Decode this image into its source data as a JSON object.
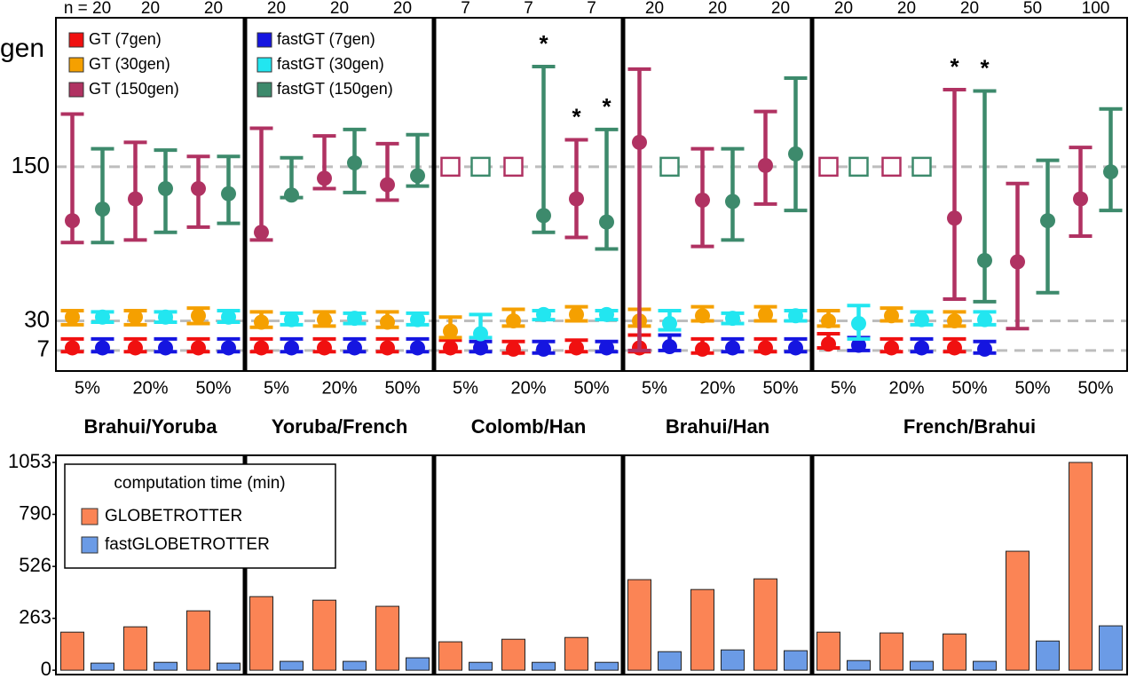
{
  "chart_data": [
    {
      "type": "errorbar",
      "ylabel": "gen",
      "ylim": [
        -9,
        266
      ],
      "yticks": [
        7,
        30,
        150
      ],
      "grid": true,
      "legend": "upper left",
      "groups": [
        {
          "label": "Brahui/Yoruba",
          "categories": [
            "5%",
            "20%",
            "50%"
          ],
          "n_labels": [
            "n = 20",
            "20",
            "20"
          ]
        },
        {
          "label": "Yoruba/French",
          "categories": [
            "5%",
            "20%",
            "50%"
          ],
          "n_labels": [
            "20",
            "20",
            "20"
          ]
        },
        {
          "label": "Colomb/Han",
          "categories": [
            "5%",
            "20%",
            "50%"
          ],
          "n_labels": [
            "7",
            "7",
            "7"
          ]
        },
        {
          "label": "Brahui/Han",
          "categories": [
            "5%",
            "20%",
            "50%"
          ],
          "n_labels": [
            "20",
            "20",
            "20"
          ]
        },
        {
          "label": "French/Brahui",
          "categories": [
            "5%",
            "20%",
            "50%",
            "50%",
            "50%"
          ],
          "n_labels": [
            "20",
            "20",
            "20",
            "50",
            "100"
          ]
        }
      ],
      "series": [
        {
          "name": "GT (7gen)",
          "color": "#f01010",
          "values": [
            9,
            9,
            9,
            9,
            9,
            9,
            9,
            8,
            9,
            9,
            8,
            9,
            12,
            9,
            9,
            null,
            null
          ],
          "low": [
            6,
            6,
            6,
            6,
            6,
            6,
            6,
            5,
            6,
            6,
            5,
            6,
            9,
            6,
            6,
            null,
            null
          ],
          "high": [
            16,
            16,
            16,
            16,
            16,
            16,
            15,
            14,
            15,
            19,
            16,
            16,
            20,
            16,
            16,
            null,
            null
          ]
        },
        {
          "name": "GT (30gen)",
          "color": "#f5a000",
          "values": [
            33,
            33,
            34,
            29,
            31,
            29,
            22,
            30,
            35,
            30,
            34,
            35,
            30,
            34,
            30,
            null,
            null
          ],
          "low": [
            27,
            27,
            28,
            25,
            26,
            25,
            17,
            26,
            30,
            26,
            30,
            30,
            26,
            30,
            26,
            null,
            null
          ],
          "high": [
            38,
            38,
            40,
            37,
            37,
            37,
            33,
            39,
            41,
            39,
            41,
            41,
            38,
            40,
            37,
            null,
            null
          ]
        },
        {
          "name": "GT (150gen)",
          "color": "#b03262",
          "values": [
            108,
            125,
            133,
            99,
            141,
            136,
            150,
            150,
            125,
            169,
            124,
            151,
            150,
            150,
            110,
            76,
            125
          ],
          "markers": [
            "circle",
            "circle",
            "circle",
            "circle",
            "circle",
            "circle",
            "square",
            "square",
            "circle",
            "circle",
            "circle",
            "circle",
            "square",
            "square",
            "circle",
            "circle",
            "circle"
          ],
          "low": [
            91,
            93,
            103,
            93,
            133,
            124,
            null,
            null,
            95,
            7,
            88,
            121,
            null,
            null,
            47,
            24,
            96
          ],
          "high": [
            191,
            169,
            158,
            180,
            174,
            168,
            null,
            null,
            171,
            226,
            164,
            193,
            null,
            null,
            210,
            137,
            165
          ],
          "labels": [
            null,
            null,
            null,
            null,
            null,
            null,
            null,
            null,
            "*",
            null,
            null,
            null,
            null,
            null,
            "*",
            null,
            null
          ]
        },
        {
          "name": "fastGT (7gen)",
          "color": "#1515e0",
          "values": [
            9,
            9,
            9,
            9,
            9,
            9,
            9,
            8,
            9,
            10,
            9,
            9,
            11,
            9,
            8,
            null,
            null
          ],
          "low": [
            6,
            6,
            6,
            6,
            6,
            6,
            6,
            5,
            6,
            7,
            6,
            6,
            7,
            6,
            5,
            null,
            null
          ],
          "high": [
            16,
            16,
            16,
            16,
            16,
            16,
            14,
            14,
            14,
            19,
            16,
            16,
            17,
            16,
            14,
            null,
            null
          ]
        },
        {
          "name": "fastGT (30gen)",
          "color": "#22e6f0",
          "values": [
            33,
            33,
            33,
            31,
            32,
            31,
            20,
            35,
            35,
            28,
            32,
            34,
            28,
            31,
            31,
            null,
            null
          ],
          "low": [
            29,
            29,
            29,
            27,
            28,
            27,
            17,
            31,
            31,
            23,
            28,
            30,
            16,
            27,
            27,
            null,
            null
          ],
          "high": [
            37,
            37,
            38,
            36,
            36,
            36,
            35,
            38,
            38,
            38,
            36,
            38,
            42,
            37,
            37,
            null,
            null
          ]
        },
        {
          "name": "fastGT (150gen)",
          "color": "#3d8a6c",
          "values": [
            117,
            133,
            129,
            128,
            153,
            143,
            150,
            112,
            107,
            150,
            123,
            160,
            150,
            150,
            77,
            108,
            146
          ],
          "markers": [
            "circle",
            "circle",
            "circle",
            "circle",
            "circle",
            "circle",
            "square",
            "circle",
            "circle",
            "square",
            "circle",
            "circle",
            "square",
            "square",
            "circle",
            "circle",
            "circle"
          ],
          "low": [
            91,
            99,
            106,
            126,
            130,
            135,
            null,
            99,
            86,
            null,
            93,
            116,
            null,
            null,
            45,
            52,
            116
          ],
          "high": [
            164,
            163,
            158,
            157,
            179,
            175,
            null,
            228,
            179,
            null,
            164,
            219,
            null,
            null,
            209,
            155,
            195
          ],
          "labels": [
            null,
            null,
            null,
            null,
            null,
            null,
            null,
            "*",
            "*",
            null,
            null,
            null,
            null,
            null,
            "*",
            null,
            null
          ]
        }
      ]
    },
    {
      "type": "bar",
      "legend_title": "computation time (min)",
      "legend": "upper left",
      "ylim": [
        -22,
        1089
      ],
      "yticks": [
        0,
        263,
        526,
        790,
        1053
      ],
      "series": [
        {
          "name": "GLOBETROTTER",
          "color": "#fb8455",
          "values": [
            193,
            220,
            301,
            373,
            355,
            324,
            144,
            157,
            166,
            459,
            409,
            463,
            193,
            189,
            184,
            603,
            1053
          ]
        },
        {
          "name": "fastGLOBETROTTER",
          "color": "#6b9be6",
          "values": [
            36,
            40,
            36,
            45,
            45,
            63,
            40,
            40,
            40,
            94,
            103,
            99,
            49,
            45,
            45,
            148,
            225
          ]
        }
      ]
    }
  ]
}
